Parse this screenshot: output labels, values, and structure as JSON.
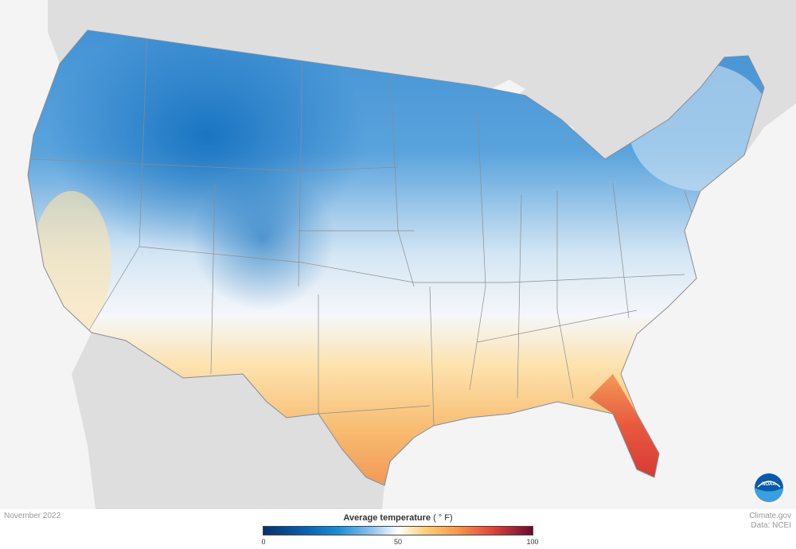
{
  "map": {
    "date": "November 2022",
    "legend": {
      "title": "Average temperature",
      "unit": "( ° F)",
      "ticks": [
        "0",
        "50",
        "100"
      ],
      "range": [
        0,
        100
      ],
      "colors": [
        "#08306b",
        "#1b8fd6",
        "#ffffff",
        "#f59a4a",
        "#e0443a",
        "#6b0a2e"
      ]
    },
    "credit": {
      "site": "Climate.gov",
      "source": "Data: NCEI"
    },
    "logo_text": "NOAA"
  }
}
